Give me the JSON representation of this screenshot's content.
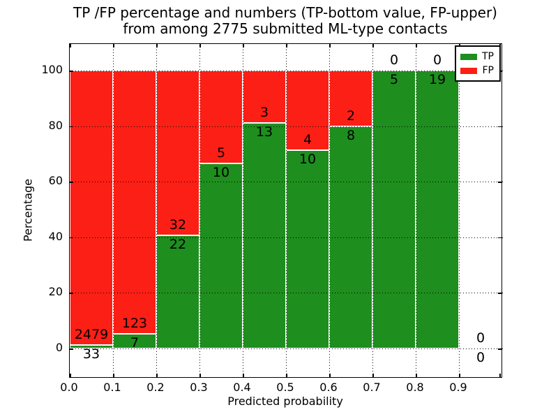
{
  "chart_data": {
    "type": "bar",
    "stacked": true,
    "title_line1": "TP /FP percentage and numbers (TP-bottom value, FP-upper)",
    "title_line2": "from among 2775 submitted ML-type contacts",
    "xlabel": "Predicted probability",
    "ylabel": "Percentage",
    "x_tick_labels": [
      "0.0",
      "0.1",
      "0.2",
      "0.3",
      "0.4",
      "0.5",
      "0.6",
      "0.7",
      "0.8",
      "0.9"
    ],
    "y_tick_labels": [
      "0",
      "20",
      "40",
      "60",
      "80",
      "100"
    ],
    "y_tick_values": [
      0,
      20,
      40,
      60,
      80,
      100
    ],
    "xlim": [
      0.0,
      1.0
    ],
    "ylim": [
      -10.5,
      109.5
    ],
    "grid": "dotted",
    "legend_position": "upper right",
    "legend": [
      {
        "label": "TP",
        "color": "#1e8e1e"
      },
      {
        "label": "FP",
        "color": "#fc1f16"
      }
    ],
    "colors": {
      "tp": "#1e8e1e",
      "fp": "#fc1f16"
    },
    "total_contacts_in_title": "2775",
    "bins": [
      {
        "range": [
          0.0,
          0.1
        ],
        "tp": 33,
        "fp": 2479,
        "tp_pct": 1.31
      },
      {
        "range": [
          0.1,
          0.2
        ],
        "tp": 7,
        "fp": 123,
        "tp_pct": 5.38
      },
      {
        "range": [
          0.2,
          0.3
        ],
        "tp": 22,
        "fp": 32,
        "tp_pct": 40.74
      },
      {
        "range": [
          0.3,
          0.4
        ],
        "tp": 10,
        "fp": 5,
        "tp_pct": 66.67
      },
      {
        "range": [
          0.4,
          0.5
        ],
        "tp": 13,
        "fp": 3,
        "tp_pct": 81.25
      },
      {
        "range": [
          0.5,
          0.6
        ],
        "tp": 10,
        "fp": 4,
        "tp_pct": 71.43
      },
      {
        "range": [
          0.6,
          0.7
        ],
        "tp": 8,
        "fp": 2,
        "tp_pct": 80.0
      },
      {
        "range": [
          0.7,
          0.8
        ],
        "tp": 5,
        "fp": 0,
        "tp_pct": 100.0
      },
      {
        "range": [
          0.8,
          0.9
        ],
        "tp": 19,
        "fp": 0,
        "tp_pct": 100.0
      },
      {
        "range": [
          0.9,
          1.0
        ],
        "tp": 0,
        "fp": 0,
        "tp_pct": 0.0
      }
    ]
  }
}
